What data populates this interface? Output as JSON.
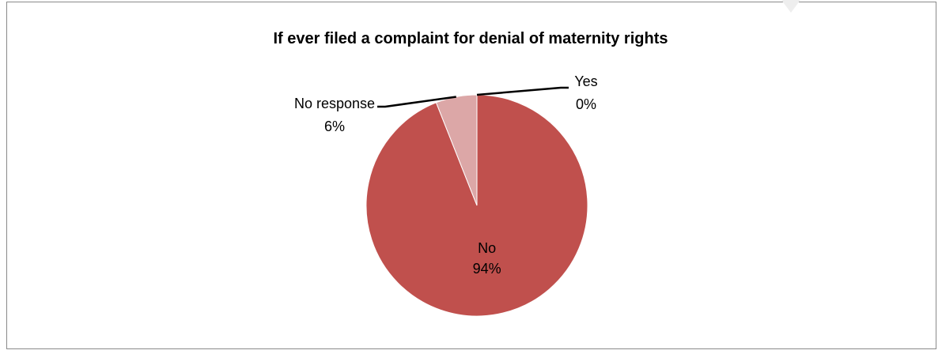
{
  "chart_data": {
    "type": "pie",
    "title": "If ever filed a complaint for denial of maternity rights",
    "slices": [
      {
        "category": "Yes",
        "value": 0,
        "label": "0%",
        "color": "#c0504d"
      },
      {
        "category": "No",
        "value": 94,
        "label": "94%",
        "color": "#c0504d"
      },
      {
        "category": "No response",
        "value": 6,
        "label": "6%",
        "color": "#dca7a7"
      }
    ],
    "label_color_on_slice": "#000000",
    "frame_border_color": "#8a8a8a"
  }
}
